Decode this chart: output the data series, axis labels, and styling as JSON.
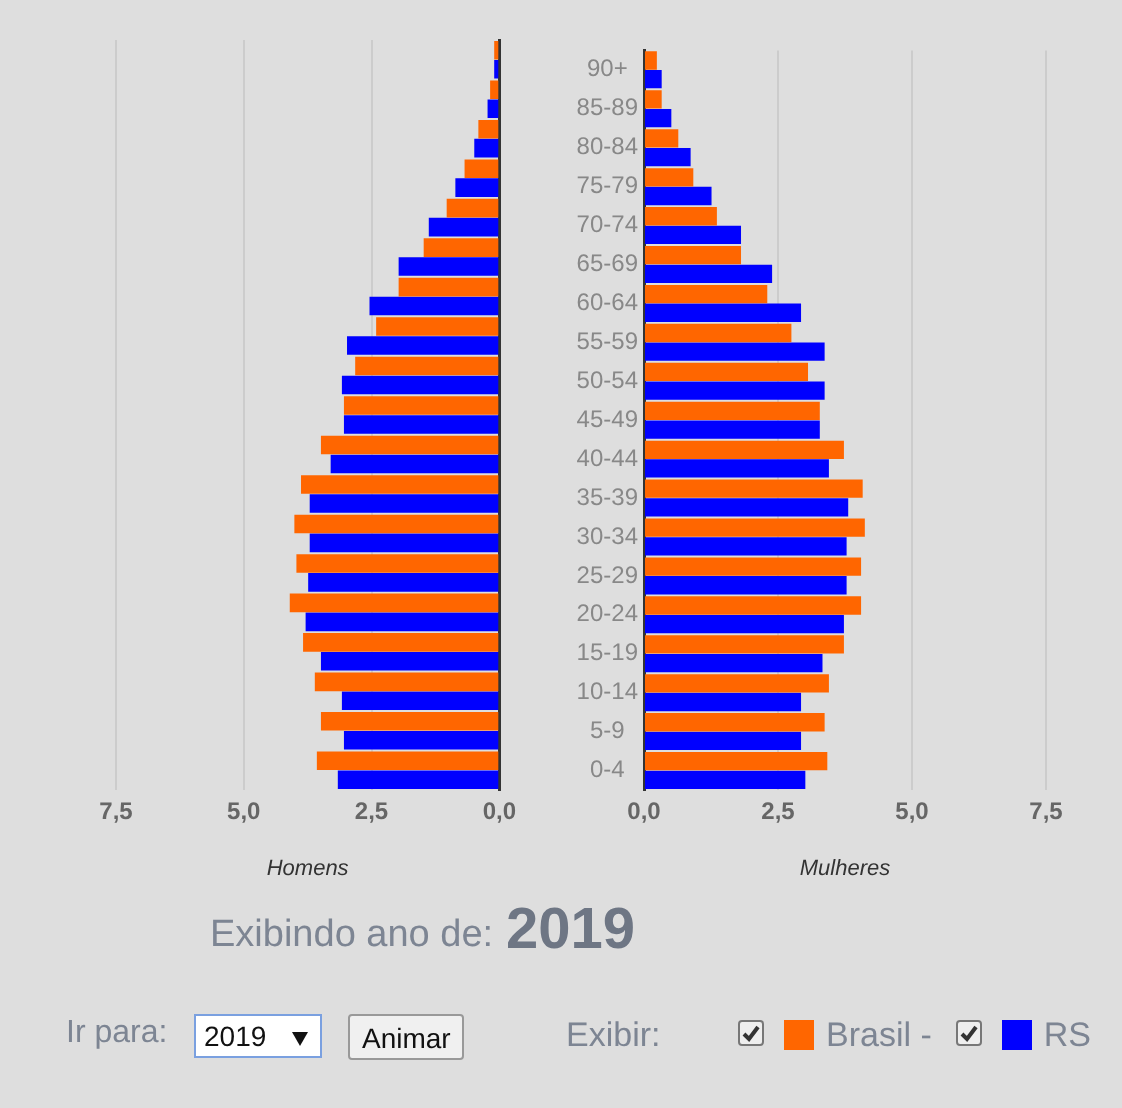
{
  "chart_data": [
    {
      "type": "bar",
      "orientation": "horizontal",
      "xlabel": "Homens",
      "categories": [
        null,
        null,
        null,
        null,
        null,
        null,
        null,
        null,
        null,
        null,
        null,
        null,
        null,
        null,
        null,
        null,
        null,
        null,
        null
      ],
      "series": [
        {
          "name": "Brasil -",
          "color": "#ff6600",
          "values": [
            0.1,
            0.18,
            0.41,
            0.68,
            1.03,
            1.48,
            1.97,
            2.41,
            2.82,
            3.04,
            3.49,
            3.88,
            4.01,
            3.97,
            4.1,
            3.84,
            3.61,
            3.49,
            3.57
          ]
        },
        {
          "name": "RS",
          "color": "#0000ff",
          "values": [
            0.1,
            0.23,
            0.49,
            0.86,
            1.38,
            1.97,
            2.54,
            2.98,
            3.08,
            3.04,
            3.3,
            3.71,
            3.71,
            3.74,
            3.79,
            3.49,
            3.08,
            3.04,
            3.16
          ]
        }
      ],
      "xlim": [
        7.5,
        0
      ],
      "xticks": [
        {
          "value": 7.5,
          "label": "7,5"
        },
        {
          "value": 5,
          "label": "5,0"
        },
        {
          "value": 2.5,
          "label": "2,5"
        },
        {
          "value": 0,
          "label": "0,0"
        }
      ],
      "grid": "x",
      "tick_labels": "x",
      "legend": "bottom"
    },
    {
      "type": "bar",
      "orientation": "horizontal",
      "xlabel": "Mulheres",
      "categories": [
        "90+",
        "85-89",
        "80-84",
        "75-79",
        "70-74",
        "65-69",
        "60-64",
        "55-59",
        "50-54",
        "45-49",
        "40-44",
        "35-39",
        "30-34",
        "25-29",
        "20-24",
        "15-19",
        "10-14",
        "5-9",
        "0-4"
      ],
      "series": [
        {
          "color": "#ff6600",
          "values": [
            0.24,
            0.33,
            0.64,
            0.92,
            1.36,
            1.81,
            2.3,
            2.75,
            3.06,
            3.28,
            3.73,
            4.08,
            4.12,
            4.05,
            4.05,
            3.73,
            3.45,
            3.37,
            3.42
          ]
        },
        {
          "color": "#0000ff",
          "values": [
            0.33,
            0.51,
            0.87,
            1.26,
            1.81,
            2.39,
            2.93,
            3.37,
            3.37,
            3.28,
            3.45,
            3.81,
            3.78,
            3.78,
            3.73,
            3.33,
            2.93,
            2.93,
            3.01
          ]
        }
      ],
      "xlim": [
        0,
        7.5
      ],
      "xticks": [
        {
          "value": 0,
          "label": "0,0"
        },
        {
          "value": 2.5,
          "label": "2,5"
        },
        {
          "value": 5,
          "label": "5,0"
        },
        {
          "value": 7.5,
          "label": "7,5"
        }
      ],
      "grid": "x"
    },
    {
      "type": "other",
      "annotations": [
        "Exibindo ano de:",
        "2019",
        "Ir para:",
        "2019",
        "Animar",
        "Exibir:"
      ]
    }
  ]
}
